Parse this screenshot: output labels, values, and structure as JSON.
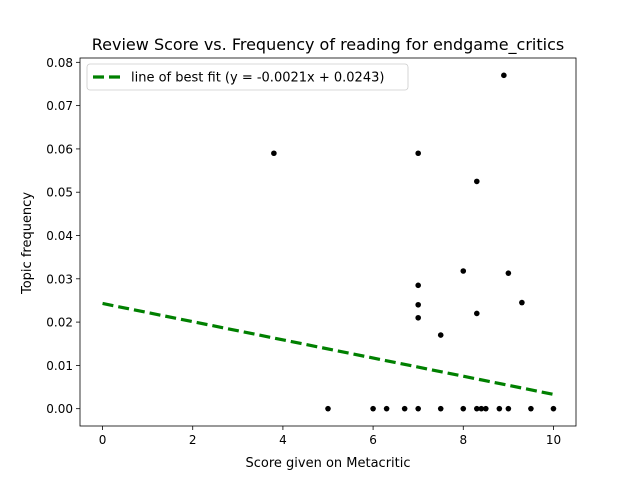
{
  "chart_data": {
    "type": "scatter",
    "title": "Review Score vs. Frequency of reading for endgame_critics",
    "xlabel": "Score given on Metacritic",
    "ylabel": "Topic frequency",
    "xlim": [
      -0.5,
      10.5
    ],
    "ylim": [
      -0.004,
      0.081
    ],
    "xticks": [
      0,
      2,
      4,
      6,
      8,
      10
    ],
    "xtick_labels": [
      "0",
      "2",
      "4",
      "6",
      "8",
      "10"
    ],
    "yticks": [
      0.0,
      0.01,
      0.02,
      0.03,
      0.04,
      0.05,
      0.06,
      0.07,
      0.08
    ],
    "ytick_labels": [
      "0.00",
      "0.01",
      "0.02",
      "0.03",
      "0.04",
      "0.05",
      "0.06",
      "0.07",
      "0.08"
    ],
    "grid": false,
    "legend_position": "upper-left",
    "points": {
      "color": "#000000",
      "x": [
        3.8,
        5.0,
        6.0,
        6.3,
        6.7,
        7.0,
        7.0,
        7.0,
        7.0,
        7.0,
        7.5,
        7.5,
        8.0,
        8.0,
        8.3,
        8.3,
        8.3,
        8.4,
        8.5,
        8.8,
        8.9,
        9.0,
        9.0,
        9.3,
        9.5,
        10.0
      ],
      "y": [
        0.059,
        0.0,
        0.0,
        0.0,
        0.0,
        0.059,
        0.0285,
        0.024,
        0.021,
        0.0,
        0.017,
        0.0,
        0.0318,
        0.0,
        0.0525,
        0.022,
        0.0,
        0.0,
        0.0,
        0.0,
        0.077,
        0.0313,
        0.0,
        0.0245,
        0.0,
        0.0
      ]
    },
    "best_fit": {
      "label": "line of best fit (y = -0.0021x + 0.0243)",
      "slope": -0.0021,
      "intercept": 0.0243,
      "x_range": [
        0,
        10
      ],
      "color": "#008000",
      "style": "dashed"
    }
  }
}
